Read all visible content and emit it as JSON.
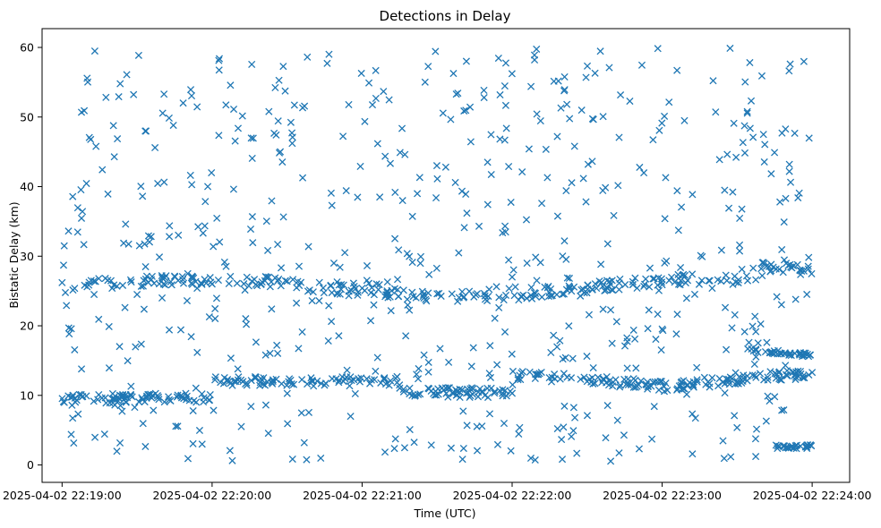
{
  "chart_data": {
    "type": "scatter",
    "title": "Detections in Delay",
    "xlabel": "Time (UTC)",
    "ylabel": "Bistatic Delay (km)",
    "marker": "x",
    "color": "#1f77b4",
    "grid": false,
    "legend": false,
    "xlim": [
      "2025-04-02 22:18:52",
      "2025-04-02 22:24:15"
    ],
    "ylim": [
      -2.5,
      62.7
    ],
    "x_ticks": [
      "2025-04-02 22:19:00",
      "2025-04-02 22:20:00",
      "2025-04-02 22:21:00",
      "2025-04-02 22:22:00",
      "2025-04-02 22:23:00",
      "2025-04-02 22:24:00"
    ],
    "y_ticks": [
      0,
      10,
      20,
      30,
      40,
      50,
      60
    ],
    "track_points": [
      {
        "x": "2025-04-02 22:19:00",
        "y": 26.2
      },
      {
        "x": "2025-04-02 22:19:10",
        "y": 25.6
      },
      {
        "x": "2025-04-02 22:19:20",
        "y": 25.4
      },
      {
        "x": "2025-04-02 22:19:30",
        "y": 24.5
      },
      {
        "x": "2025-04-02 22:19:40",
        "y": 24.0
      },
      {
        "x": "2025-04-02 22:19:50",
        "y": 23.6
      },
      {
        "x": "2025-04-02 22:20:00",
        "y": 26.0
      },
      {
        "x": "2025-04-02 22:20:10",
        "y": 26.1
      },
      {
        "x": "2025-04-02 22:20:20",
        "y": 26.3
      },
      {
        "x": "2025-04-02 22:20:30",
        "y": 26.4
      },
      {
        "x": "2025-04-02 22:20:40",
        "y": 23.6
      },
      {
        "x": "2025-04-02 22:20:50",
        "y": 26.3
      },
      {
        "x": "2025-04-02 22:21:00",
        "y": 25.4
      },
      {
        "x": "2025-04-02 22:21:10",
        "y": 25.0
      },
      {
        "x": "2025-04-02 22:21:20",
        "y": 24.8
      },
      {
        "x": "2025-04-02 22:21:30",
        "y": 24.6
      },
      {
        "x": "2025-04-02 22:21:40",
        "y": 24.9
      },
      {
        "x": "2025-04-02 22:21:50",
        "y": 23.6
      },
      {
        "x": "2025-04-02 22:22:00",
        "y": 27.0
      },
      {
        "x": "2025-04-02 22:22:40",
        "y": 26.5
      },
      {
        "x": "2025-04-02 22:23:00",
        "y": 25.9
      },
      {
        "x": "2025-04-02 22:23:20",
        "y": 25.4
      },
      {
        "x": "2025-04-02 22:23:40",
        "y": 27.2
      },
      {
        "x": "2025-04-02 22:23:55",
        "y": 28.0
      },
      {
        "x": "2025-04-02 22:19:20",
        "y": 9.5
      },
      {
        "x": "2025-04-02 22:20:20",
        "y": 12.2
      },
      {
        "x": "2025-04-02 22:20:40",
        "y": 12.0
      },
      {
        "x": "2025-04-02 22:21:20",
        "y": 10.0
      },
      {
        "x": "2025-04-02 22:21:40",
        "y": 10.8
      },
      {
        "x": "2025-04-02 22:22:00",
        "y": 10.3
      },
      {
        "x": "2025-04-02 22:22:10",
        "y": 13.0
      },
      {
        "x": "2025-04-02 22:22:30",
        "y": 12.0
      },
      {
        "x": "2025-04-02 22:22:50",
        "y": 11.3
      },
      {
        "x": "2025-04-02 22:23:10",
        "y": 11.4
      },
      {
        "x": "2025-04-02 22:23:30",
        "y": 12.0
      },
      {
        "x": "2025-04-02 22:23:50",
        "y": 12.9
      },
      {
        "x": "2025-04-02 22:24:00",
        "y": 13.3
      },
      {
        "x": "2025-04-02 22:23:55",
        "y": 15.8
      },
      {
        "x": "2025-04-02 22:23:50",
        "y": 2.5
      },
      {
        "x": "2025-04-02 22:23:45",
        "y": 9.8
      }
    ],
    "clutter_note_count": 1500
  }
}
